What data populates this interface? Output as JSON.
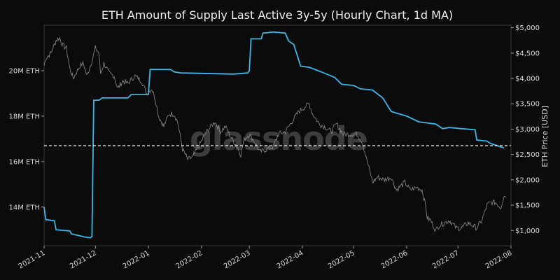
{
  "chart_data": {
    "type": "line",
    "title": "ETH Amount of Supply Last Active 3y-5y (Hourly Chart, 1d MA)",
    "watermark": "glassnode",
    "x_ticks": [
      "2021-11",
      "2021-12",
      "2022-01",
      "2022-02",
      "2022-03",
      "2022-04",
      "2022-05",
      "2022-06",
      "2022-07",
      "2022-08"
    ],
    "x_range": [
      "2021-11-01",
      "2022-08-01"
    ],
    "y_left": {
      "ticks": [
        14000000,
        16000000,
        18000000,
        20000000
      ],
      "tick_labels": [
        "14M ETH",
        "16M ETH",
        "18M ETH",
        "20M ETH"
      ],
      "range": [
        12300000,
        22000000
      ]
    },
    "y_right": {
      "label": "ETH Price [USD]",
      "ticks": [
        1000,
        1500,
        2000,
        2500,
        3000,
        3500,
        4000,
        4500,
        5000
      ],
      "tick_labels": [
        "$1,000",
        "$1,500",
        "$2,000",
        "$2,500",
        "$3,000",
        "$3,500",
        "$4,000",
        "$4,500",
        "$5,000"
      ],
      "range": [
        700,
        5050
      ]
    },
    "reference_line": {
      "y": 16700000,
      "style": "dashed",
      "color": "#ffffff"
    },
    "series": [
      {
        "axis": "left",
        "color": "#3fb4e6",
        "points": [
          [
            "2021-11-01",
            14000000
          ],
          [
            "2021-11-02",
            13450000
          ],
          [
            "2021-11-07",
            13400000
          ],
          [
            "2021-11-08",
            13000000
          ],
          [
            "2021-11-16",
            12950000
          ],
          [
            "2021-11-17",
            12820000
          ],
          [
            "2021-11-21",
            12750000
          ],
          [
            "2021-11-25",
            12680000
          ],
          [
            "2021-11-28",
            12650000
          ],
          [
            "2021-11-29",
            12700000
          ],
          [
            "2021-11-30",
            18700000
          ],
          [
            "2021-12-03",
            18700000
          ],
          [
            "2021-12-05",
            18800000
          ],
          [
            "2021-12-20",
            18800000
          ],
          [
            "2021-12-22",
            18950000
          ],
          [
            "2021-12-31",
            18950000
          ],
          [
            "2022-01-01",
            18950000
          ],
          [
            "2022-01-02",
            20050000
          ],
          [
            "2022-01-14",
            20050000
          ],
          [
            "2022-01-16",
            19950000
          ],
          [
            "2022-01-20",
            19900000
          ],
          [
            "2022-02-01",
            19880000
          ],
          [
            "2022-02-20",
            19850000
          ],
          [
            "2022-02-28",
            19900000
          ],
          [
            "2022-03-01",
            20000000
          ],
          [
            "2022-03-02",
            21400000
          ],
          [
            "2022-03-08",
            21400000
          ],
          [
            "2022-03-09",
            21650000
          ],
          [
            "2022-03-15",
            21700000
          ],
          [
            "2022-03-22",
            21650000
          ],
          [
            "2022-03-24",
            21300000
          ],
          [
            "2022-03-27",
            21150000
          ],
          [
            "2022-03-31",
            20200000
          ],
          [
            "2022-04-05",
            20150000
          ],
          [
            "2022-04-12",
            19950000
          ],
          [
            "2022-04-20",
            19700000
          ],
          [
            "2022-04-24",
            19400000
          ],
          [
            "2022-05-01",
            19350000
          ],
          [
            "2022-05-05",
            19200000
          ],
          [
            "2022-05-12",
            19150000
          ],
          [
            "2022-05-18",
            18800000
          ],
          [
            "2022-05-23",
            18200000
          ],
          [
            "2022-06-01",
            18000000
          ],
          [
            "2022-06-08",
            17750000
          ],
          [
            "2022-06-18",
            17650000
          ],
          [
            "2022-06-22",
            17450000
          ],
          [
            "2022-06-26",
            17500000
          ],
          [
            "2022-07-03",
            17450000
          ],
          [
            "2022-07-11",
            17400000
          ],
          [
            "2022-07-12",
            16950000
          ],
          [
            "2022-07-18",
            16900000
          ],
          [
            "2022-07-20",
            16800000
          ],
          [
            "2022-07-24",
            16700000
          ],
          [
            "2022-07-28",
            16600000
          ]
        ]
      },
      {
        "axis": "right",
        "color": "#8c8c8c",
        "points": [
          [
            "2021-11-01",
            4250
          ],
          [
            "2021-11-02",
            4400
          ],
          [
            "2021-11-05",
            4500
          ],
          [
            "2021-11-08",
            4750
          ],
          [
            "2021-11-10",
            4800
          ],
          [
            "2021-11-12",
            4650
          ],
          [
            "2021-11-14",
            4600
          ],
          [
            "2021-11-16",
            4200
          ],
          [
            "2021-11-18",
            4000
          ],
          [
            "2021-11-22",
            4250
          ],
          [
            "2021-11-24",
            4300
          ],
          [
            "2021-11-26",
            4050
          ],
          [
            "2021-11-29",
            4350
          ],
          [
            "2021-12-01",
            4600
          ],
          [
            "2021-12-03",
            4500
          ],
          [
            "2021-12-04",
            4100
          ],
          [
            "2021-12-06",
            4300
          ],
          [
            "2021-12-09",
            4100
          ],
          [
            "2021-12-12",
            4050
          ],
          [
            "2021-12-14",
            3800
          ],
          [
            "2021-12-17",
            3950
          ],
          [
            "2021-12-20",
            3900
          ],
          [
            "2021-12-24",
            4050
          ],
          [
            "2021-12-28",
            3950
          ],
          [
            "2021-12-31",
            3700
          ],
          [
            "2022-01-03",
            3800
          ],
          [
            "2022-01-05",
            3600
          ],
          [
            "2022-01-07",
            3250
          ],
          [
            "2022-01-10",
            3050
          ],
          [
            "2022-01-13",
            3300
          ],
          [
            "2022-01-16",
            3300
          ],
          [
            "2022-01-18",
            3150
          ],
          [
            "2022-01-21",
            2600
          ],
          [
            "2022-01-24",
            2400
          ],
          [
            "2022-01-27",
            2450
          ],
          [
            "2022-01-31",
            2700
          ],
          [
            "2022-02-04",
            2950
          ],
          [
            "2022-02-09",
            3150
          ],
          [
            "2022-02-12",
            2950
          ],
          [
            "2022-02-15",
            3050
          ],
          [
            "2022-02-18",
            2850
          ],
          [
            "2022-02-22",
            2650
          ],
          [
            "2022-02-24",
            2500
          ],
          [
            "2022-02-26",
            2800
          ],
          [
            "2022-03-01",
            2900
          ],
          [
            "2022-03-04",
            2750
          ],
          [
            "2022-03-07",
            2550
          ],
          [
            "2022-03-11",
            2600
          ],
          [
            "2022-03-15",
            2650
          ],
          [
            "2022-03-18",
            2900
          ],
          [
            "2022-03-22",
            2950
          ],
          [
            "2022-03-26",
            3150
          ],
          [
            "2022-03-30",
            3350
          ],
          [
            "2022-04-03",
            3450
          ],
          [
            "2022-04-05",
            3500
          ],
          [
            "2022-04-07",
            3300
          ],
          [
            "2022-04-11",
            3100
          ],
          [
            "2022-04-14",
            3050
          ],
          [
            "2022-04-18",
            2950
          ],
          [
            "2022-04-21",
            3100
          ],
          [
            "2022-04-25",
            2900
          ],
          [
            "2022-04-29",
            2900
          ],
          [
            "2022-05-03",
            2900
          ],
          [
            "2022-05-06",
            2750
          ],
          [
            "2022-05-09",
            2350
          ],
          [
            "2022-05-11",
            2100
          ],
          [
            "2022-05-12",
            1950
          ],
          [
            "2022-05-15",
            2050
          ],
          [
            "2022-05-19",
            2000
          ],
          [
            "2022-05-23",
            2050
          ],
          [
            "2022-05-26",
            1800
          ],
          [
            "2022-05-31",
            1950
          ],
          [
            "2022-06-03",
            1800
          ],
          [
            "2022-06-07",
            1850
          ],
          [
            "2022-06-10",
            1800
          ],
          [
            "2022-06-12",
            1500
          ],
          [
            "2022-06-13",
            1250
          ],
          [
            "2022-06-15",
            1200
          ],
          [
            "2022-06-18",
            1000
          ],
          [
            "2022-06-20",
            1100
          ],
          [
            "2022-06-23",
            1150
          ],
          [
            "2022-06-26",
            1200
          ],
          [
            "2022-06-30",
            1050
          ],
          [
            "2022-07-03",
            1050
          ],
          [
            "2022-07-07",
            1150
          ],
          [
            "2022-07-12",
            1050
          ],
          [
            "2022-07-15",
            1200
          ],
          [
            "2022-07-18",
            1500
          ],
          [
            "2022-07-20",
            1550
          ],
          [
            "2022-07-23",
            1550
          ],
          [
            "2022-07-26",
            1450
          ],
          [
            "2022-07-28",
            1700
          ],
          [
            "2022-07-29",
            1650
          ]
        ]
      }
    ]
  }
}
